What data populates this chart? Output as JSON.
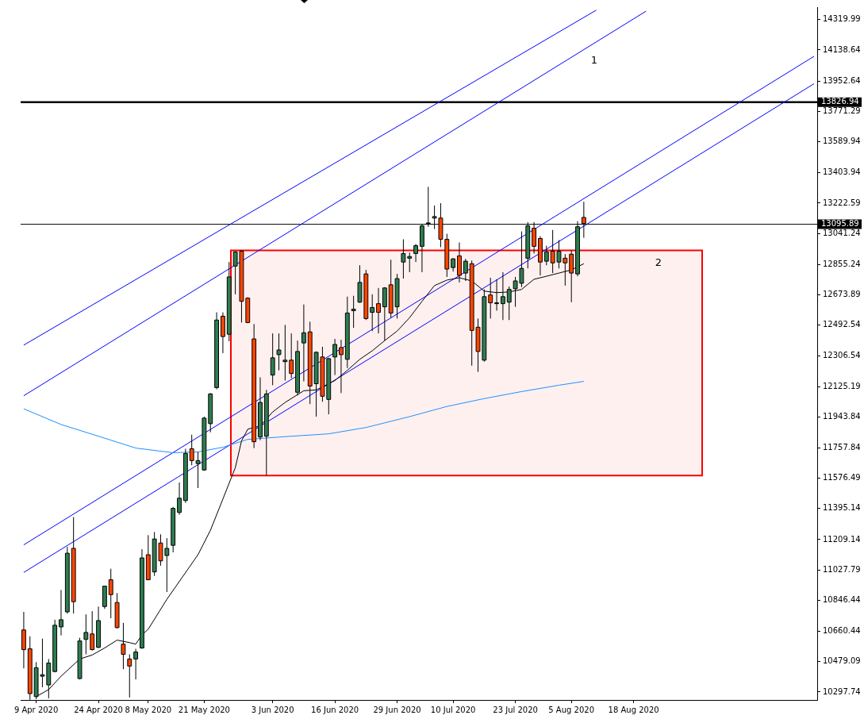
{
  "chart_data": {
    "type": "candlestick",
    "categories": [
      null,
      null,
      "9 Apr 2020",
      null,
      null,
      null,
      null,
      null,
      null,
      null,
      null,
      null,
      "24 Apr 2020",
      null,
      null,
      null,
      null,
      null,
      null,
      null,
      "8 May 2020",
      null,
      null,
      null,
      null,
      null,
      null,
      null,
      null,
      "21 May 2020",
      null,
      null,
      null,
      null,
      null,
      null,
      null,
      null,
      null,
      null,
      "3 Jun 2020",
      null,
      null,
      null,
      null,
      null,
      null,
      null,
      null,
      null,
      "16 Jun 2020",
      null,
      null,
      null,
      null,
      null,
      null,
      null,
      null,
      null,
      "29 Jun 2020",
      null,
      null,
      null,
      null,
      null,
      null,
      null,
      null,
      "10 Jul 2020",
      null,
      null,
      null,
      null,
      null,
      null,
      null,
      null,
      null,
      "23 Jul 2020",
      null,
      null,
      null,
      null,
      null,
      null,
      null,
      null,
      "5 Aug 2020",
      null,
      null,
      null,
      null,
      null,
      null,
      null,
      null,
      null,
      "18 Aug 2020",
      null,
      null,
      null,
      null,
      null,
      null,
      null,
      null,
      null,
      null,
      null,
      null,
      null,
      null,
      null,
      null,
      null,
      null,
      null,
      null,
      null,
      null,
      null,
      null,
      null,
      null,
      null,
      null,
      null
    ],
    "ohlc": [
      [
        10669,
        10777,
        10439,
        10551
      ],
      [
        10556,
        10631,
        10251,
        10288
      ],
      [
        10270,
        10476,
        10255,
        10443
      ],
      [
        10392,
        10617,
        10326,
        10401
      ],
      [
        10340,
        10495,
        10260,
        10471
      ],
      [
        10420,
        10730,
        10415,
        10697
      ],
      [
        10687,
        10908,
        10636,
        10730
      ],
      [
        10777,
        11166,
        10767,
        11128
      ],
      [
        11157,
        11344,
        10767,
        10838
      ],
      [
        10378,
        10622,
        10373,
        10603
      ],
      [
        10612,
        10762,
        10523,
        10654
      ],
      [
        10645,
        10781,
        10546,
        10551
      ],
      [
        10565,
        10809,
        10560,
        10725
      ],
      [
        10809,
        10931,
        10795,
        10931
      ],
      [
        10969,
        11035,
        10739,
        10880
      ],
      [
        10833,
        10889,
        10678,
        10683
      ],
      [
        10584,
        10711,
        10434,
        10523
      ],
      [
        10495,
        10523,
        10265,
        10453
      ],
      [
        10495,
        10556,
        10373,
        10537
      ],
      [
        10561,
        11152,
        10556,
        11100
      ],
      [
        11119,
        11236,
        10967,
        10969
      ],
      [
        11016,
        11255,
        10992,
        11213
      ],
      [
        11189,
        11241,
        11053,
        11082
      ],
      [
        11114,
        11218,
        10896,
        11157
      ],
      [
        11175,
        11405,
        11133,
        11396
      ],
      [
        11372,
        11551,
        11358,
        11457
      ],
      [
        11443,
        11753,
        11429,
        11725
      ],
      [
        11753,
        11837,
        11654,
        11682
      ],
      [
        11664,
        11734,
        11518,
        11682
      ],
      [
        11626,
        11945,
        11621,
        11936
      ],
      [
        11903,
        12086,
        11851,
        12081
      ],
      [
        12119,
        12569,
        12109,
        12523
      ],
      [
        12546,
        12569,
        12325,
        12424
      ],
      [
        12438,
        12870,
        12396,
        12781
      ],
      [
        12846,
        12935,
        12677,
        12931
      ],
      [
        12935,
        12940,
        12508,
        12635
      ],
      [
        12654,
        12659,
        12504,
        12508
      ],
      [
        12410,
        12499,
        11757,
        11795
      ],
      [
        11823,
        12180,
        11804,
        12030
      ],
      [
        11828,
        12105,
        11593,
        12081
      ],
      [
        12194,
        12443,
        12133,
        12297
      ],
      [
        12316,
        12443,
        12222,
        12344
      ],
      [
        12274,
        12494,
        12161,
        12283
      ],
      [
        12283,
        12443,
        12175,
        12203
      ],
      [
        12091,
        12400,
        12072,
        12335
      ],
      [
        12386,
        12616,
        12156,
        12447
      ],
      [
        12452,
        12513,
        12020,
        12128
      ],
      [
        12142,
        12335,
        11945,
        12330
      ],
      [
        12302,
        12363,
        12034,
        12067
      ],
      [
        12048,
        12297,
        11959,
        12292
      ],
      [
        12302,
        12410,
        12194,
        12377
      ],
      [
        12358,
        12405,
        12086,
        12316
      ],
      [
        12288,
        12663,
        12236,
        12565
      ],
      [
        12579,
        12668,
        12476,
        12588
      ],
      [
        12630,
        12851,
        12626,
        12748
      ],
      [
        12799,
        12823,
        12523,
        12532
      ],
      [
        12569,
        12677,
        12457,
        12598
      ],
      [
        12621,
        12715,
        12443,
        12569
      ],
      [
        12602,
        12720,
        12400,
        12715
      ],
      [
        12734,
        12884,
        12537,
        12565
      ],
      [
        12602,
        12799,
        12532,
        12771
      ],
      [
        12870,
        13006,
        12771,
        12921
      ],
      [
        12893,
        12926,
        12809,
        12903
      ],
      [
        12921,
        12978,
        12870,
        12968
      ],
      [
        12964,
        13095,
        12809,
        13086
      ],
      [
        13100,
        13320,
        13081,
        13104
      ],
      [
        13133,
        13208,
        13067,
        13142
      ],
      [
        13133,
        13222,
        12959,
        13006
      ],
      [
        13006,
        13039,
        12781,
        12828
      ],
      [
        12837,
        12893,
        12813,
        12889
      ],
      [
        12907,
        12987,
        12748,
        12790
      ],
      [
        12804,
        12889,
        12757,
        12875
      ],
      [
        12860,
        12879,
        12250,
        12461
      ],
      [
        12480,
        12532,
        12213,
        12335
      ],
      [
        12283,
        12706,
        12274,
        12663
      ],
      [
        12673,
        12776,
        12532,
        12626
      ],
      [
        12621,
        12767,
        12579,
        12626
      ],
      [
        12621,
        12809,
        12523,
        12663
      ],
      [
        12630,
        12724,
        12523,
        12706
      ],
      [
        12710,
        12781,
        12602,
        12757
      ],
      [
        12743,
        13053,
        12720,
        12832
      ],
      [
        12893,
        13109,
        12832,
        13086
      ],
      [
        13072,
        13109,
        12921,
        12964
      ],
      [
        13011,
        13025,
        12790,
        12870
      ],
      [
        12875,
        12968,
        12851,
        12931
      ],
      [
        12935,
        13062,
        12804,
        12865
      ],
      [
        12870,
        13001,
        12832,
        12935
      ],
      [
        12893,
        12917,
        12729,
        12865
      ],
      [
        12917,
        12940,
        12630,
        12804
      ],
      [
        12799,
        13114,
        12785,
        13081
      ],
      [
        13137,
        13231,
        13015,
        13100
      ],
      null,
      null,
      null,
      null,
      null,
      null,
      null,
      null,
      null,
      null,
      null,
      null,
      null,
      null,
      null,
      null,
      null,
      null,
      null,
      null,
      null,
      null,
      null,
      null,
      null,
      null,
      null,
      null,
      null,
      null,
      null,
      null,
      null,
      null,
      null,
      null,
      null
    ],
    "colors": [
      "#ff4500",
      "#ff4500",
      "#2e7d4f",
      "#2e7d4f",
      "#2e7d4f",
      "#2e7d4f",
      "#2e7d4f",
      "#2e7d4f",
      "#ff4500",
      "#2e7d4f",
      "#2e7d4f",
      "#ff4500",
      "#2e7d4f",
      "#2e7d4f",
      "#ff4500",
      "#ff4500",
      "#ff4500",
      "#ff4500",
      "#2e7d4f",
      "#2e7d4f",
      "#ff4500",
      "#2e7d4f",
      "#ff4500",
      "#2e7d4f",
      "#2e7d4f",
      "#2e7d4f",
      "#2e7d4f",
      "#ff4500",
      "#2e7d4f",
      "#2e7d4f",
      "#2e7d4f",
      "#2e7d4f",
      "#ff4500",
      "#2e7d4f",
      "#2e7d4f",
      "#ff4500",
      "#ff4500",
      "#ff4500",
      "#2e7d4f",
      "#2e7d4f",
      "#2e7d4f",
      "#2e7d4f",
      "#2e7d4f",
      "#ff4500",
      "#2e7d4f",
      "#2e7d4f",
      "#ff4500",
      "#2e7d4f",
      "#ff4500",
      "#2e7d4f",
      "#2e7d4f",
      "#ff4500",
      "#2e7d4f",
      "#2e7d4f",
      "#2e7d4f",
      "#ff4500",
      "#2e7d4f",
      "#ff4500",
      "#2e7d4f",
      "#ff4500",
      "#2e7d4f",
      "#2e7d4f",
      "#2e7d4f",
      "#2e7d4f",
      "#2e7d4f",
      "#2e7d4f",
      "#2e7d4f",
      "#ff4500",
      "#ff4500",
      "#2e7d4f",
      "#ff4500",
      "#2e7d4f",
      "#ff4500",
      "#ff4500",
      "#2e7d4f",
      "#ff4500",
      "#2e7d4f",
      "#2e7d4f",
      "#2e7d4f",
      "#2e7d4f",
      "#2e7d4f",
      "#2e7d4f",
      "#ff4500",
      "#ff4500",
      "#2e7d4f",
      "#ff4500",
      "#2e7d4f",
      "#ff4500",
      "#ff4500",
      "#2e7d4f",
      "#ff4500",
      null,
      null,
      null,
      null,
      null,
      null,
      null,
      null,
      null,
      null,
      null,
      null,
      null,
      null,
      null,
      null,
      null,
      null,
      null,
      null,
      null,
      null,
      null,
      null,
      null,
      null,
      null,
      null,
      null,
      null,
      null,
      null,
      null,
      null,
      null,
      null,
      null
    ],
    "series": [
      {
        "type": "line",
        "color": "#000000",
        "values": [
          null,
          null,
          10270,
          null,
          10312,
          null,
          10392,
          null,
          null,
          10495,
          null,
          10519,
          null,
          10561,
          null,
          10608,
          null,
          10593,
          10584,
          10640,
          10673,
          null,
          null,
          10852,
          null,
          null,
          null,
          null,
          11119,
          null,
          11265,
          null,
          11452,
          null,
          11640,
          11800,
          11870,
          null,
          11889,
          null,
          11973,
          null,
          12030,
          null,
          null,
          12100,
          null,
          12105,
          12123,
          null,
          12161,
          null,
          12222,
          null,
          12288,
          null,
          12339,
          null,
          12400,
          null,
          12457,
          null,
          12537,
          null,
          12635,
          null,
          12729,
          null,
          12762,
          null,
          12776,
          null,
          12757,
          null,
          12696,
          null,
          12687,
          null,
          12691,
          null,
          12706,
          null,
          12767,
          null,
          12785,
          null,
          12804,
          null,
          12823,
          null,
          12860,
          null,
          null,
          null,
          null,
          null,
          null,
          null,
          null,
          null,
          null,
          null,
          null,
          null,
          null,
          null,
          null,
          null,
          null,
          null,
          null,
          null,
          null,
          null,
          null,
          null,
          null,
          null,
          null,
          null,
          null,
          null,
          null,
          null,
          null,
          null,
          null,
          null
        ]
      },
      {
        "type": "line",
        "color": "#1e90ff",
        "values": [
          11992,
          null,
          null,
          null,
          null,
          null,
          11898,
          null,
          null,
          null,
          null,
          null,
          11828,
          null,
          null,
          null,
          null,
          null,
          11757,
          null,
          null,
          null,
          null,
          null,
          11729,
          null,
          null,
          null,
          11734,
          null,
          null,
          null,
          11762,
          null,
          null,
          null,
          11809,
          null,
          null,
          null,
          null,
          null,
          null,
          11828,
          null,
          null,
          null,
          null,
          null,
          11842,
          null,
          null,
          null,
          null,
          null,
          11880,
          null,
          null,
          null,
          null,
          null,
          null,
          11945,
          null,
          null,
          null,
          null,
          null,
          12006,
          null,
          null,
          null,
          null,
          null,
          12053,
          null,
          null,
          null,
          null,
          null,
          12095,
          null,
          null,
          null,
          null,
          null,
          12133,
          null,
          null,
          null,
          12156,
          null,
          null,
          null,
          null,
          null,
          null,
          null,
          null,
          null,
          null,
          null,
          null,
          null,
          null,
          null,
          null,
          null,
          null,
          null,
          null,
          null,
          null,
          null,
          null,
          null,
          null,
          null,
          null,
          null,
          null,
          null,
          null,
          null,
          null,
          null,
          null,
          null
        ]
      },
      {
        "type": "line",
        "color": "#0000ff",
        "values": [
          12373,
          null,
          null,
          null,
          null,
          null,
          null,
          null,
          null,
          null,
          null,
          null,
          null,
          null,
          null,
          null,
          null,
          null,
          null,
          null,
          null,
          null,
          null,
          null,
          null,
          null,
          null,
          null,
          null,
          null,
          null,
          null,
          null,
          null,
          null,
          null,
          null,
          null,
          null,
          null,
          null,
          null,
          null,
          null,
          null,
          null,
          null,
          null,
          null,
          null,
          null,
          null,
          null,
          null,
          null,
          null,
          null,
          null,
          null,
          null,
          null,
          null,
          null,
          null,
          null,
          null,
          null,
          null,
          null,
          null,
          null,
          null,
          null,
          null,
          null,
          null,
          null,
          null,
          null,
          null,
          null,
          null,
          null,
          null,
          null,
          null,
          null,
          null,
          null,
          null,
          null,
          null,
          14377,
          null,
          null,
          null,
          null,
          null,
          null,
          null,
          null,
          null,
          null,
          null,
          null,
          null,
          null,
          null,
          null,
          null,
          null,
          null,
          null,
          null,
          null,
          null,
          null,
          null,
          null,
          null,
          null,
          null,
          null,
          null,
          null,
          null,
          null,
          null
        ]
      },
      {
        "type": "line",
        "color": "#0000ff",
        "values": [
          12070,
          null,
          null,
          null,
          null,
          null,
          null,
          null,
          null,
          null,
          null,
          null,
          null,
          null,
          null,
          null,
          null,
          null,
          null,
          null,
          null,
          null,
          null,
          null,
          null,
          null,
          null,
          null,
          null,
          null,
          null,
          null,
          null,
          null,
          null,
          null,
          null,
          null,
          null,
          null,
          null,
          null,
          null,
          null,
          null,
          null,
          null,
          null,
          null,
          null,
          null,
          null,
          null,
          null,
          null,
          null,
          null,
          null,
          null,
          null,
          null,
          null,
          null,
          null,
          null,
          null,
          null,
          null,
          null,
          null,
          null,
          null,
          null,
          null,
          null,
          null,
          null,
          null,
          null,
          null,
          null,
          null,
          null,
          null,
          null,
          null,
          null,
          null,
          null,
          null,
          null,
          null,
          null,
          null,
          null,
          null,
          null,
          null,
          null,
          null,
          14371,
          null,
          null,
          null,
          null,
          null,
          null,
          null,
          null,
          null,
          null,
          null,
          null,
          null,
          null,
          null,
          null,
          null,
          null,
          null,
          null,
          null,
          null,
          null,
          null,
          null,
          null,
          null
        ]
      },
      {
        "type": "line",
        "color": "#0000ff",
        "values": [
          11178,
          null,
          null,
          null,
          null,
          null,
          null,
          null,
          null,
          null,
          null,
          null,
          null,
          null,
          null,
          null,
          null,
          null,
          null,
          null,
          null,
          null,
          null,
          null,
          null,
          null,
          null,
          null,
          null,
          null,
          null,
          null,
          null,
          null,
          null,
          null,
          null,
          null,
          null,
          null,
          null,
          null,
          null,
          null,
          null,
          null,
          null,
          null,
          null,
          null,
          null,
          null,
          null,
          null,
          null,
          null,
          null,
          null,
          null,
          null,
          null,
          null,
          null,
          null,
          null,
          null,
          null,
          null,
          null,
          null,
          null,
          null,
          null,
          null,
          null,
          null,
          null,
          null,
          null,
          null,
          null,
          null,
          null,
          null,
          null,
          null,
          null,
          null,
          null,
          null,
          null,
          null,
          null,
          null,
          null,
          null,
          null,
          null,
          null,
          null,
          null,
          null,
          null,
          null,
          null,
          null,
          null,
          null,
          null,
          null,
          null,
          null,
          null,
          null,
          null,
          null,
          null,
          null,
          null,
          null,
          null,
          null,
          null,
          null,
          null,
          null,
          null,
          14101
        ]
      },
      {
        "type": "line",
        "color": "#0000ff",
        "values": [
          11013,
          null,
          null,
          null,
          null,
          null,
          null,
          null,
          null,
          null,
          null,
          null,
          null,
          null,
          null,
          null,
          null,
          null,
          null,
          null,
          null,
          null,
          null,
          null,
          null,
          null,
          null,
          null,
          null,
          null,
          null,
          null,
          null,
          null,
          null,
          null,
          null,
          null,
          null,
          null,
          null,
          null,
          null,
          null,
          null,
          null,
          null,
          null,
          null,
          null,
          null,
          null,
          null,
          null,
          null,
          null,
          null,
          null,
          null,
          null,
          null,
          null,
          null,
          null,
          null,
          null,
          null,
          null,
          null,
          null,
          null,
          null,
          null,
          null,
          null,
          null,
          null,
          null,
          null,
          null,
          null,
          null,
          null,
          null,
          null,
          null,
          null,
          null,
          null,
          null,
          null,
          null,
          null,
          null,
          null,
          null,
          null,
          null,
          null,
          null,
          null,
          null,
          null,
          null,
          null,
          null,
          null,
          null,
          null,
          null,
          null,
          null,
          null,
          null,
          null,
          null,
          null,
          null,
          null,
          null,
          null,
          null,
          null,
          null,
          null,
          null,
          null,
          13937
        ]
      }
    ],
    "ref_lines": [
      {
        "axis": "y",
        "value": 13826.94,
        "label": "13826.94",
        "color": "#000000"
      },
      {
        "axis": "y",
        "value": 13095.89,
        "label": "13095.89",
        "color": "#000000"
      }
    ],
    "bands": [
      {
        "axis": "y",
        "from": 11593,
        "to": 12940,
        "label": "2",
        "color": "#ff0000"
      }
    ],
    "annotations": [
      "1"
    ],
    "ylim": [
      10250,
      14395
    ],
    "yticks": [
      14319.99,
      14138.64,
      13952.64,
      13771.29,
      13589.94,
      13403.94,
      13222.59,
      13041.24,
      12855.24,
      12673.89,
      12492.54,
      12306.54,
      12125.19,
      11943.84,
      11757.84,
      11576.49,
      11395.14,
      11209.14,
      11027.79,
      10846.44,
      10660.44,
      10479.09,
      10297.74
    ],
    "grid": false,
    "legend": false
  }
}
